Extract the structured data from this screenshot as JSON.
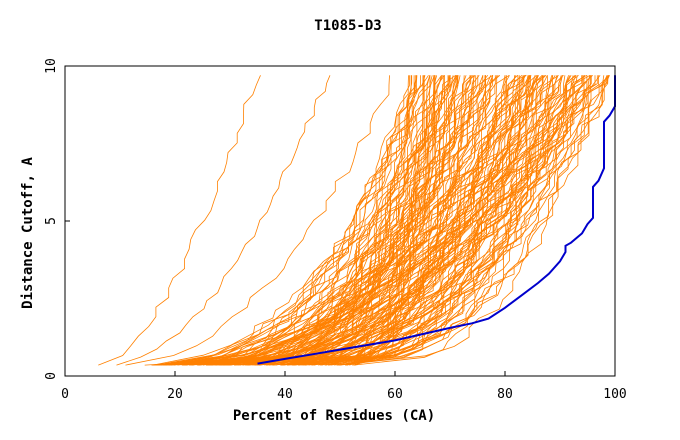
{
  "chart_data": {
    "type": "line",
    "title": "T1085-D3",
    "xlabel": "Percent of Residues (CA)",
    "ylabel": "Distance Cutoff, A",
    "xlim": [
      0,
      100
    ],
    "ylim": [
      0,
      10
    ],
    "xticks": [
      "0",
      "20",
      "40",
      "60",
      "80",
      "100"
    ],
    "yticks": [
      "0",
      "5",
      "10"
    ],
    "grid": false,
    "colors": {
      "models": "#ff8000",
      "highlight": "#0000cc"
    },
    "highlight_series": {
      "name": "",
      "x": [
        35,
        40,
        45,
        50,
        55,
        60,
        65,
        70,
        74,
        77,
        80,
        83,
        86,
        88,
        90,
        91,
        91,
        92,
        94,
        95,
        96,
        96,
        96,
        97,
        98,
        98,
        99,
        100,
        100
      ],
      "y": [
        0.4,
        0.55,
        0.7,
        0.85,
        1.0,
        1.15,
        1.35,
        1.55,
        1.7,
        1.85,
        2.2,
        2.6,
        3.0,
        3.3,
        3.7,
        4.0,
        4.2,
        4.3,
        4.6,
        4.9,
        5.1,
        5.6,
        6.1,
        6.3,
        6.7,
        8.2,
        8.4,
        8.7,
        9.7
      ]
    },
    "model_series_summary": {
      "count": 160,
      "x_range": [
        6,
        98
      ],
      "note_color": "orange"
    }
  }
}
